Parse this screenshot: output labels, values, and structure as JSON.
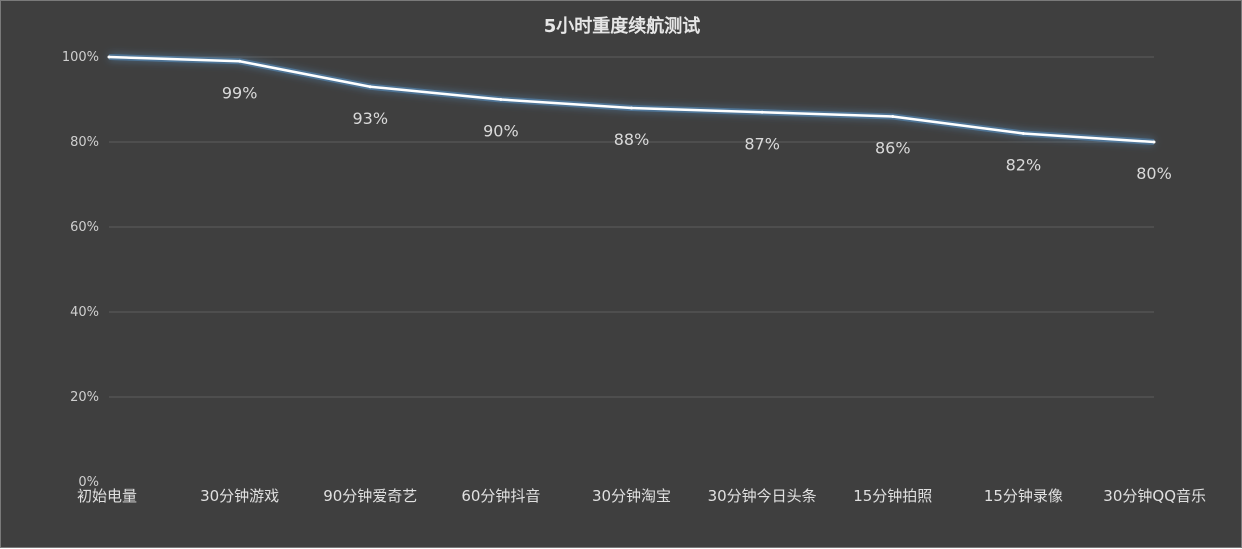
{
  "chart_data": {
    "type": "line",
    "title": "5小时重度续航测试",
    "categories": [
      "初始电量",
      "30分钟游戏",
      "90分钟爱奇艺",
      "60分钟抖音",
      "30分钟淘宝",
      "30分钟今日头条",
      "15分钟拍照",
      "15分钟录像",
      "30分钟QQ音乐"
    ],
    "values": [
      100,
      99,
      93,
      90,
      88,
      87,
      86,
      82,
      80
    ],
    "data_labels": [
      null,
      "99%",
      "93%",
      "90%",
      "88%",
      "87%",
      "86%",
      "82%",
      "80%"
    ],
    "y_ticks": [
      "0%",
      "20%",
      "40%",
      "60%",
      "80%",
      "100%"
    ],
    "ylim": [
      0,
      100
    ],
    "grid": true,
    "legend": "none",
    "colors": {
      "background": "#3f3f3f",
      "line": "#ffffff",
      "glow": "#5b9bd5"
    }
  }
}
